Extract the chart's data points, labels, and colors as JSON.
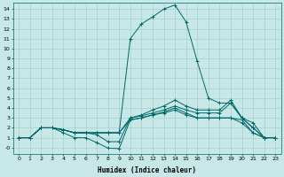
{
  "xlabel": "Humidex (Indice chaleur)",
  "background_color": "#c8e8e8",
  "grid_color": "#a0c8c8",
  "line_color": "#006868",
  "xlim": [
    -0.5,
    23.5
  ],
  "ylim": [
    -0.6,
    14.6
  ],
  "xticks": [
    0,
    1,
    2,
    3,
    4,
    5,
    6,
    7,
    8,
    9,
    10,
    11,
    12,
    13,
    14,
    15,
    16,
    17,
    18,
    19,
    20,
    21,
    22,
    23
  ],
  "yticks": [
    0,
    1,
    2,
    3,
    4,
    5,
    6,
    7,
    8,
    9,
    10,
    11,
    12,
    13,
    14
  ],
  "ytick_labels": [
    "-0",
    "1",
    "2",
    "3",
    "4",
    "5",
    "6",
    "7",
    "8",
    "9",
    "10",
    "11",
    "12",
    "13",
    "14"
  ],
  "lines": [
    {
      "x": [
        0,
        1,
        2,
        3,
        4,
        5,
        6,
        7,
        8,
        9,
        10,
        11,
        12,
        13,
        14,
        15,
        16,
        17,
        18,
        19,
        20,
        21,
        22,
        23
      ],
      "y": [
        1,
        1,
        2,
        2,
        1.8,
        1.5,
        1.5,
        1.5,
        1.5,
        1.5,
        11,
        12.5,
        13.2,
        14,
        14.4,
        12.7,
        8.7,
        5,
        4.5,
        4.5,
        3,
        2.5,
        1,
        1
      ]
    },
    {
      "x": [
        0,
        1,
        2,
        3,
        4,
        5,
        6,
        7,
        8,
        9,
        10,
        11,
        12,
        13,
        14,
        15,
        16,
        17,
        18,
        19,
        20,
        21,
        22,
        23
      ],
      "y": [
        1,
        1,
        2,
        2,
        1.8,
        1.5,
        1.5,
        1.3,
        0.6,
        0.6,
        3,
        3.2,
        3.5,
        3.8,
        4.2,
        3.8,
        3.5,
        3.5,
        3.5,
        4.5,
        3,
        2,
        1,
        1
      ]
    },
    {
      "x": [
        0,
        1,
        2,
        3,
        4,
        5,
        6,
        7,
        8,
        9,
        10,
        11,
        12,
        13,
        14,
        15,
        16,
        17,
        18,
        19,
        20,
        21,
        22,
        23
      ],
      "y": [
        1,
        1,
        2,
        2,
        1.5,
        1,
        1,
        0.5,
        -0.05,
        -0.1,
        2.8,
        3,
        3.3,
        3.6,
        4,
        3.5,
        3,
        3,
        3,
        3,
        2.5,
        1.5,
        1,
        1
      ]
    },
    {
      "x": [
        0,
        1,
        2,
        3,
        4,
        5,
        6,
        7,
        8,
        9,
        10,
        11,
        12,
        13,
        14,
        15,
        16,
        17,
        18,
        19,
        20,
        21,
        22,
        23
      ],
      "y": [
        1,
        1,
        2,
        2,
        1.8,
        1.5,
        1.5,
        1.5,
        1.5,
        1.5,
        2.8,
        3,
        3.3,
        3.5,
        3.8,
        3.3,
        3,
        3,
        3,
        3,
        2.8,
        1.5,
        1,
        1
      ]
    },
    {
      "x": [
        0,
        1,
        2,
        3,
        4,
        5,
        6,
        7,
        8,
        9,
        10,
        11,
        12,
        13,
        14,
        15,
        16,
        17,
        18,
        19,
        20,
        21,
        22,
        23
      ],
      "y": [
        1,
        1,
        2,
        2,
        1.8,
        1.5,
        1.5,
        1.5,
        1.5,
        1.5,
        3,
        3.3,
        3.8,
        4.2,
        4.8,
        4.2,
        3.8,
        3.8,
        3.8,
        4.8,
        3,
        2,
        1,
        1
      ]
    }
  ]
}
